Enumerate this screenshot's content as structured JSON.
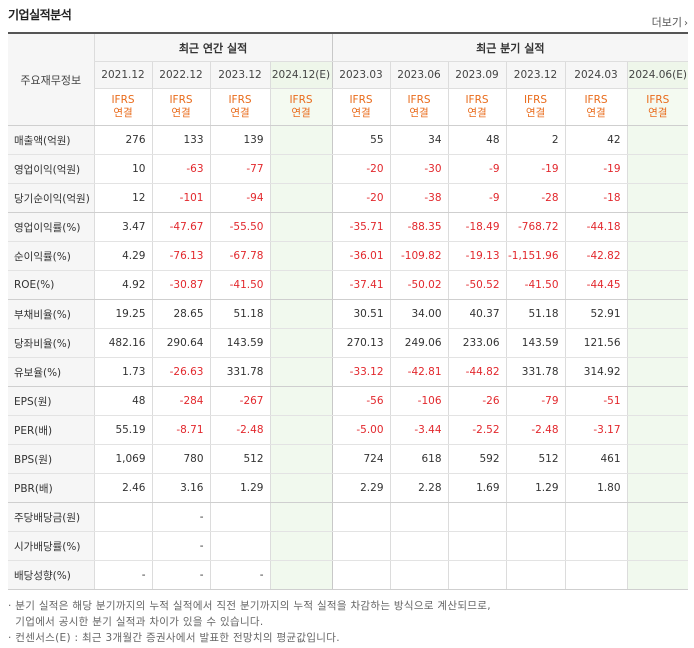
{
  "header": {
    "title": "기업실적분석",
    "more_label": "더보기",
    "more_icon": "chevron-right-icon"
  },
  "table": {
    "corner_label": "주요재무정보",
    "groups": {
      "annual": "최근 연간 실적",
      "quarterly": "최근 분기 실적"
    },
    "columns": [
      "2021.12",
      "2022.12",
      "2023.12",
      "2024.12(E)",
      "2023.03",
      "2023.06",
      "2023.09",
      "2023.12",
      "2024.03",
      "2024.06(E)"
    ],
    "ifrs_top": "IFRS",
    "ifrs_bottom": "연결",
    "rows": [
      {
        "label": "매출액(억원)",
        "values": [
          "276",
          "133",
          "139",
          "",
          "55",
          "34",
          "48",
          "2",
          "42",
          ""
        ]
      },
      {
        "label": "영업이익(억원)",
        "values": [
          "10",
          "-63",
          "-77",
          "",
          "-20",
          "-30",
          "-9",
          "-19",
          "-19",
          ""
        ]
      },
      {
        "label": "당기순이익(억원)",
        "values": [
          "12",
          "-101",
          "-94",
          "",
          "-20",
          "-38",
          "-9",
          "-28",
          "-18",
          ""
        ]
      },
      {
        "label": "영업이익률(%)",
        "values": [
          "3.47",
          "-47.67",
          "-55.50",
          "",
          "-35.71",
          "-88.35",
          "-18.49",
          "-768.72",
          "-44.18",
          ""
        ]
      },
      {
        "label": "순이익률(%)",
        "values": [
          "4.29",
          "-76.13",
          "-67.78",
          "",
          "-36.01",
          "-109.82",
          "-19.13",
          "-1,151.96",
          "-42.82",
          ""
        ]
      },
      {
        "label": "ROE(%)",
        "values": [
          "4.92",
          "-30.87",
          "-41.50",
          "",
          "-37.41",
          "-50.02",
          "-50.52",
          "-41.50",
          "-44.45",
          ""
        ]
      },
      {
        "label": "부채비율(%)",
        "values": [
          "19.25",
          "28.65",
          "51.18",
          "",
          "30.51",
          "34.00",
          "40.37",
          "51.18",
          "52.91",
          ""
        ]
      },
      {
        "label": "당좌비율(%)",
        "values": [
          "482.16",
          "290.64",
          "143.59",
          "",
          "270.13",
          "249.06",
          "233.06",
          "143.59",
          "121.56",
          ""
        ]
      },
      {
        "label": "유보율(%)",
        "values": [
          "1.73",
          "-26.63",
          "331.78",
          "",
          "-33.12",
          "-42.81",
          "-44.82",
          "331.78",
          "314.92",
          ""
        ]
      },
      {
        "label": "EPS(원)",
        "values": [
          "48",
          "-284",
          "-267",
          "",
          "-56",
          "-106",
          "-26",
          "-79",
          "-51",
          ""
        ]
      },
      {
        "label": "PER(배)",
        "values": [
          "55.19",
          "-8.71",
          "-2.48",
          "",
          "-5.00",
          "-3.44",
          "-2.52",
          "-2.48",
          "-3.17",
          ""
        ]
      },
      {
        "label": "BPS(원)",
        "values": [
          "1,069",
          "780",
          "512",
          "",
          "724",
          "618",
          "592",
          "512",
          "461",
          ""
        ]
      },
      {
        "label": "PBR(배)",
        "values": [
          "2.46",
          "3.16",
          "1.29",
          "",
          "2.29",
          "2.28",
          "1.69",
          "1.29",
          "1.80",
          ""
        ]
      },
      {
        "label": "주당배당금(원)",
        "values": [
          "",
          "-",
          "",
          "",
          "",
          "",
          "",
          "",
          "",
          ""
        ]
      },
      {
        "label": "시가배당률(%)",
        "values": [
          "",
          "-",
          "",
          "",
          "",
          "",
          "",
          "",
          "",
          ""
        ]
      },
      {
        "label": "배당성향(%)",
        "values": [
          "-",
          "-",
          "-",
          "",
          "",
          "",
          "",
          "",
          "",
          ""
        ]
      }
    ]
  },
  "notes": [
    "분기 실적은 해당 분기까지의 누적 실적에서 직전 분기까지의 누적 실적을 차감하는 방식으로 계산되므로,",
    "기업에서 공시한 분기 실적과 차이가 있을 수 있습니다.",
    "컨센서스(E) : 최근 3개월간 증권사에서 발표한 전망치의 평균값입니다."
  ],
  "colors": {
    "negative": "#e2282d",
    "ifrs": "#e96b1b",
    "estimate_bg": "#f1f9ee"
  }
}
